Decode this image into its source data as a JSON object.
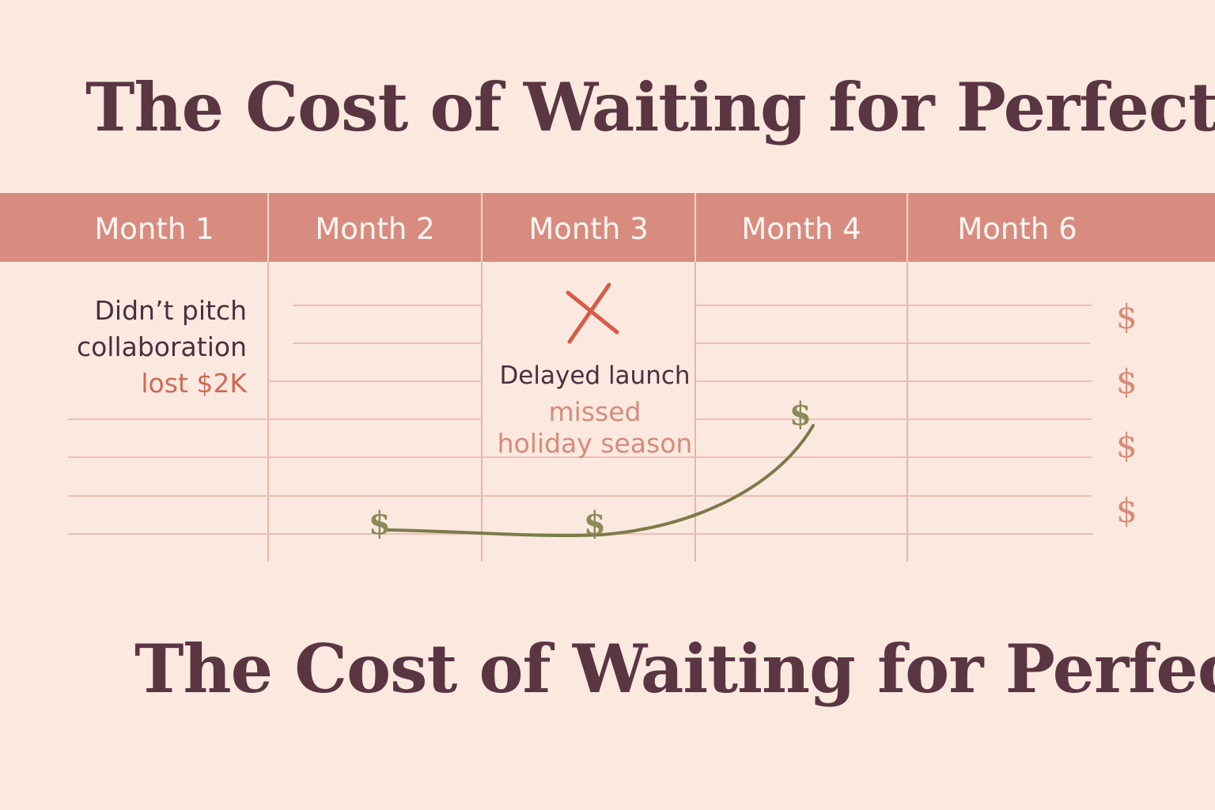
{
  "title_top": "The Cost of Waiting for Perfect",
  "title_bottom": "The Cost of Waiting for Perfect",
  "months": [
    "Month 1",
    "Month 2",
    "Month 3",
    "Month 4",
    "Month 6"
  ],
  "notes": {
    "month1": {
      "line1": "Didn’t pitch",
      "line2": "collaboration",
      "loss": "lost $2K"
    },
    "month3": {
      "line1": "Delayed launch",
      "line2": "missed",
      "line3": "holiday season"
    }
  },
  "markers": {
    "dollar_symbol": "$",
    "right_column_dollars": [
      "$",
      "$",
      "$",
      "$"
    ],
    "curve_dollars": [
      "$",
      "$",
      "$"
    ],
    "x_mark": "cross-icon"
  },
  "colors": {
    "background": "#fbe9e0",
    "header": "#d88c7f",
    "title": "#5a3542",
    "accent_red": "#cf6a55",
    "curve": "#7d7a4a"
  }
}
